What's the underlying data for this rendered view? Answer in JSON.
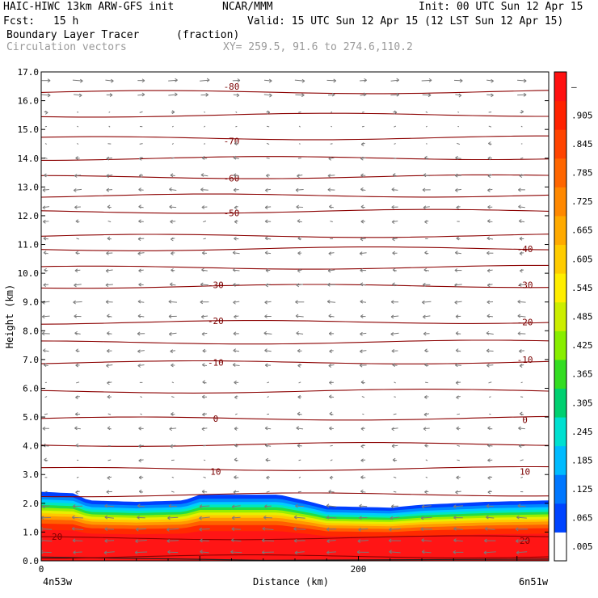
{
  "header": {
    "model": "HAIC-HIWC 13km ARW-GFS init",
    "org": "NCAR/MMM",
    "init": "Init: 00 UTC Sun 12 Apr 15",
    "fcst_label": "Fcst:",
    "fcst_value": "15 h",
    "valid": "Valid: 15 UTC Sun 12 Apr 15 (12 LST Sun 12 Apr 15)",
    "field": "Boundary Layer Tracer",
    "units": "(fraction)",
    "overlay": "Circulation vectors",
    "xy": "XY= 259.5, 91.6 to 274.6,110.2"
  },
  "chart_data": {
    "type": "heatmap",
    "title": "Boundary Layer Tracer",
    "xlabel": "Distance (km)",
    "ylabel": "Height (km)",
    "xlim": [
      0,
      320
    ],
    "ylim": [
      0.0,
      17.0
    ],
    "x_ticks": [
      {
        "value": 0,
        "label": "0"
      },
      {
        "value": 200,
        "label": "200"
      }
    ],
    "x_end_labels": {
      "left": "4n53w",
      "right": "6n51w"
    },
    "y_ticks": [
      "0.0",
      "1.0",
      "2.0",
      "3.0",
      "4.0",
      "5.0",
      "6.0",
      "7.0",
      "8.0",
      "9.0",
      "10.0",
      "11.0",
      "12.0",
      "13.0",
      "14.0",
      "15.0",
      "16.0",
      "17.0"
    ],
    "colorbar": {
      "labels": [
        ".005",
        ".065",
        ".125",
        ".185",
        ".245",
        ".305",
        ".365",
        ".425",
        ".485",
        ".545",
        ".605",
        ".665",
        ".725",
        ".785",
        ".845",
        ".905",
        "–"
      ],
      "colors": [
        "#ffffff",
        "#0044ff",
        "#0077ff",
        "#00bbff",
        "#00e0d0",
        "#00d070",
        "#33dd22",
        "#88ee00",
        "#ccee00",
        "#ffee00",
        "#ffcc00",
        "#ffaa00",
        "#ff8800",
        "#ff6600",
        "#ff4400",
        "#ff2200",
        "#ff1111"
      ]
    },
    "tracer_top_km": [
      {
        "x": 0,
        "z": 2.4
      },
      {
        "x": 20,
        "z": 2.35
      },
      {
        "x": 30,
        "z": 2.1
      },
      {
        "x": 60,
        "z": 2.05
      },
      {
        "x": 90,
        "z": 2.1
      },
      {
        "x": 100,
        "z": 2.3
      },
      {
        "x": 150,
        "z": 2.3
      },
      {
        "x": 170,
        "z": 2.05
      },
      {
        "x": 180,
        "z": 1.9
      },
      {
        "x": 220,
        "z": 1.85
      },
      {
        "x": 240,
        "z": 1.95
      },
      {
        "x": 280,
        "z": 2.05
      },
      {
        "x": 320,
        "z": 2.1
      }
    ],
    "temperature_contours": [
      {
        "label": "-80",
        "z": 16.3,
        "label_pos": [
          {
            "x": 120,
            "z": 16.5
          }
        ]
      },
      {
        "label": "-70",
        "z": 14.7,
        "label_pos": [
          {
            "x": 120,
            "z": 14.6
          }
        ]
      },
      {
        "label": "-60",
        "z": 13.35,
        "label_pos": [
          {
            "x": 120,
            "z": 13.3
          }
        ]
      },
      {
        "label": "-50",
        "z": 12.15,
        "label_pos": [
          {
            "x": 120,
            "z": 12.1
          }
        ]
      },
      {
        "label": "-40",
        "z": 10.85,
        "label_pos": [
          {
            "x": 305,
            "z": 10.85
          }
        ]
      },
      {
        "label": "-30",
        "z": 9.55,
        "label_pos": [
          {
            "x": 110,
            "z": 9.6
          },
          {
            "x": 305,
            "z": 9.6
          }
        ]
      },
      {
        "label": "-20",
        "z": 8.3,
        "label_pos": [
          {
            "x": 110,
            "z": 8.35
          },
          {
            "x": 305,
            "z": 8.3
          }
        ]
      },
      {
        "label": "-10",
        "z": 6.9,
        "label_pos": [
          {
            "x": 110,
            "z": 6.9
          },
          {
            "x": 305,
            "z": 7.0
          }
        ]
      },
      {
        "label": "0",
        "z": 4.95,
        "label_pos": [
          {
            "x": 110,
            "z": 4.95
          },
          {
            "x": 305,
            "z": 4.9
          }
        ]
      },
      {
        "label": "10",
        "z": 3.2,
        "label_pos": [
          {
            "x": 110,
            "z": 3.1
          },
          {
            "x": 305,
            "z": 3.1
          }
        ]
      },
      {
        "label": "20",
        "z": 0.8,
        "label_pos": [
          {
            "x": 10,
            "z": 0.85
          },
          {
            "x": 305,
            "z": 0.7
          }
        ]
      }
    ],
    "unlabeled_contours_km": [
      15.5,
      14.0,
      12.7,
      11.3,
      10.2,
      7.6,
      5.9,
      4.05,
      2.3,
      0.15
    ],
    "vector_field": {
      "x_positions": [
        3,
        23,
        43,
        63,
        83,
        103,
        123,
        143,
        163,
        183,
        203,
        223,
        243,
        263,
        283,
        303
      ],
      "z_positions": [
        16.7,
        16.2,
        15.6,
        15.1,
        14.5,
        14.0,
        13.4,
        12.9,
        12.3,
        11.8,
        11.2,
        10.7,
        10.1,
        9.6,
        9.0,
        8.5,
        7.9,
        7.3,
        6.8,
        6.2,
        5.7,
        5.1,
        4.6,
        4.0,
        3.5,
        2.9,
        2.4,
        1.9,
        1.5,
        1.1,
        0.7,
        0.3
      ],
      "u_profile": [
        0.8,
        0.7,
        0.2,
        0.1,
        0.2,
        0.4,
        0.5,
        0.6,
        0.5,
        0.4,
        0.4,
        0.5,
        0.5,
        0.6,
        0.7,
        0.6,
        0.6,
        0.5,
        0.5,
        0.3,
        0.3,
        0.3,
        0.5,
        0.4,
        0.3,
        0.3,
        0.4,
        0.8,
        0.9,
        1.0,
        1.0,
        1.0
      ],
      "u_sign": [
        1,
        1,
        1,
        -1,
        -1,
        -1,
        -1,
        -1,
        -1,
        -1,
        -1,
        -1,
        -1,
        -1,
        -1,
        -1,
        -1,
        -1,
        -1,
        -1,
        -1,
        -1,
        -1,
        -1,
        -1,
        -1,
        -1,
        -1,
        -1,
        -1,
        -1,
        -1
      ]
    }
  }
}
